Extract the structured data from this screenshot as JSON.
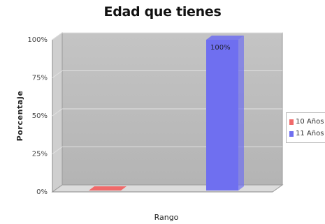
{
  "chart_data": {
    "type": "bar",
    "title": "Edad que tienes",
    "xlabel": "Rango",
    "ylabel": "Porcentaje",
    "ylim": [
      0,
      100
    ],
    "y_ticks": [
      "0%",
      "25%",
      "50%",
      "75%",
      "100%"
    ],
    "y_tick_values": [
      0,
      25,
      50,
      75,
      100
    ],
    "series": [
      {
        "name": "10 Años",
        "value": 0,
        "color": "#f06a6a"
      },
      {
        "name": "11 Años",
        "value": 100,
        "color": "#6f6ff0",
        "label": "100%"
      }
    ],
    "grid": true,
    "three_d": true,
    "legend_position": "right"
  }
}
